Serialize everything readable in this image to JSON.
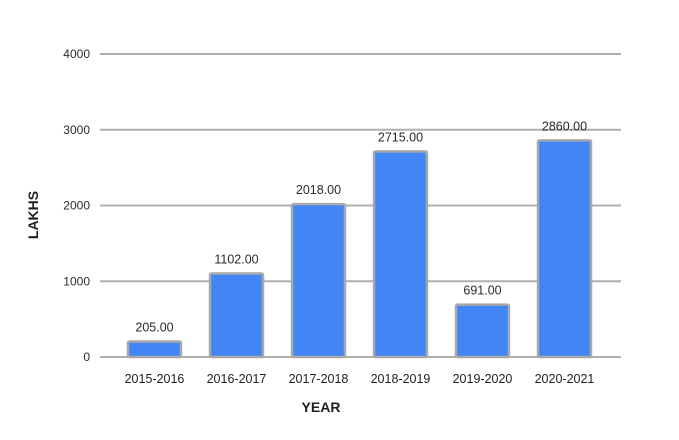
{
  "chart_data": {
    "type": "bar",
    "title": "",
    "xlabel": "YEAR",
    "ylabel": "LAKHS",
    "categories": [
      "2015-2016",
      "2016-2017",
      "2017-2018",
      "2018-2019",
      "2019-2020",
      "2020-2021"
    ],
    "values": [
      205,
      1102,
      2018,
      2715,
      691,
      2860
    ],
    "value_labels": [
      "205.00",
      "1102.00",
      "2018.00",
      "2715.00",
      "691.00",
      "2860.00"
    ],
    "ylim": [
      0,
      4000
    ],
    "yticks": [
      0,
      1000,
      2000,
      3000,
      4000
    ],
    "ytick_labels": [
      "0",
      "1000",
      "2000",
      "3000",
      "4000"
    ],
    "grid": true,
    "legend": "none",
    "colors": {
      "bar": "#4285f4",
      "bar_border": "#a9a9a9",
      "grid": "#b0b0b0"
    }
  }
}
